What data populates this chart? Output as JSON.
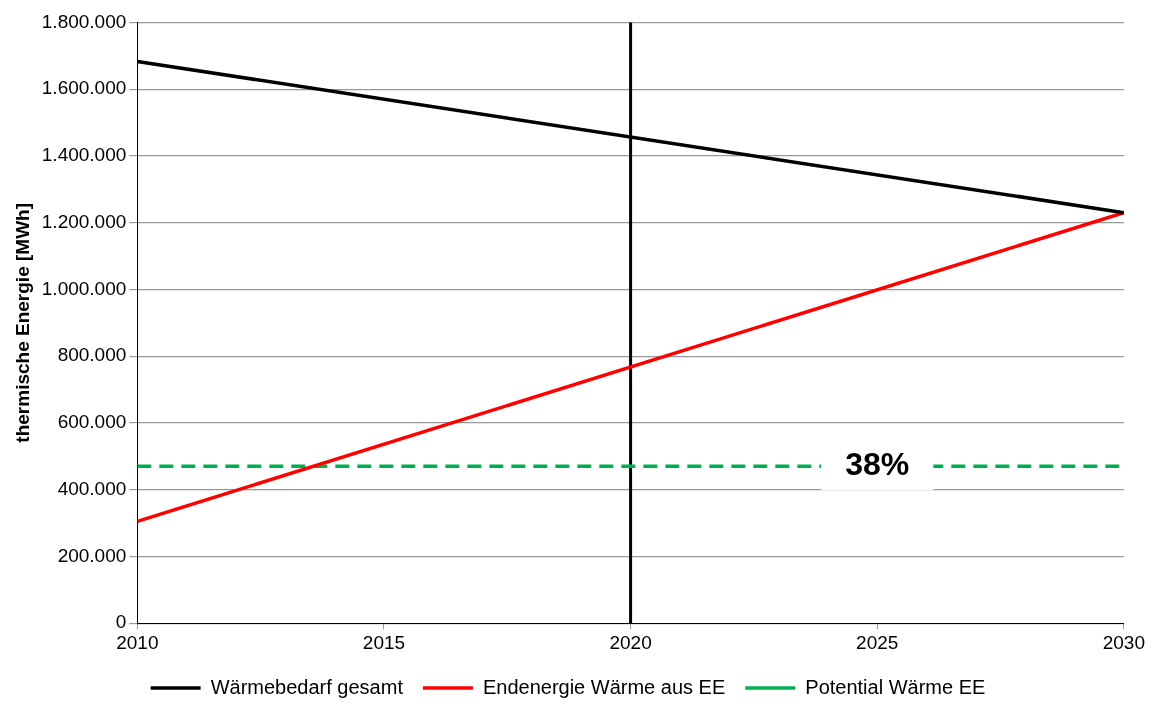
{
  "chart_data": {
    "type": "line",
    "ylabel": "thermische Energie [MWh]",
    "x": [
      2010,
      2030
    ],
    "series": [
      {
        "name": "Wärmebedarf gesamt",
        "color": "#000000",
        "values": [
          1683000,
          1230000
        ]
      },
      {
        "name": "Endenergie Wärme aus EE",
        "color": "#ff0000",
        "values": [
          305000,
          1230000
        ]
      },
      {
        "name": "Potential Wärme EE",
        "color": "#00b050",
        "values": [
          470000,
          470000
        ],
        "line_style": "dashed"
      }
    ],
    "xlim": [
      2010,
      2030
    ],
    "xticks": [
      2010,
      2015,
      2020,
      2025,
      2030
    ],
    "ylim": [
      0,
      1800000
    ],
    "yticks": [
      0,
      {
        "value": 200000,
        "label": "200.000"
      },
      {
        "value": 400000,
        "label": "400.000"
      },
      {
        "value": 600000,
        "label": "600.000"
      },
      {
        "value": 800000,
        "label": "800.000"
      },
      {
        "value": 1000000,
        "label": "1.000.000"
      },
      {
        "value": 1200000,
        "label": "1.200.000"
      },
      {
        "value": 1400000,
        "label": "1.400.000"
      },
      {
        "value": 1600000,
        "label": "1.600.000"
      },
      {
        "value": 1800000,
        "label": "1.800.000"
      }
    ],
    "ref_lines": [
      {
        "axis": "x",
        "value": 2020,
        "color": "#000000"
      }
    ],
    "annotations": [
      {
        "text": "38%",
        "x": 2025,
        "y": 470000
      }
    ],
    "grid": "y",
    "legend": "bottom",
    "marker": "none",
    "line_style": "solid"
  }
}
